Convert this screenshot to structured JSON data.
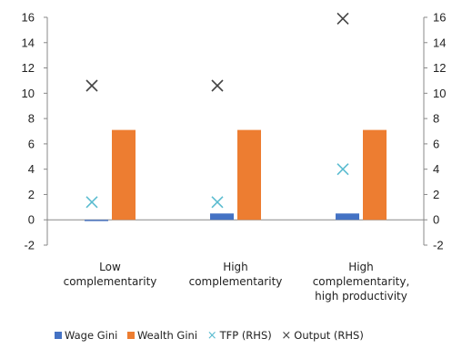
{
  "chart_data": {
    "type": "bar",
    "categories": [
      [
        "Low",
        "complementarity"
      ],
      [
        "High",
        "complementarity"
      ],
      [
        "High",
        "complementarity,",
        "high productivity"
      ]
    ],
    "series": [
      {
        "name": "Wage Gini",
        "kind": "bar",
        "axis": "left",
        "values": [
          -0.1,
          0.5,
          0.5
        ],
        "color": "#4472c4"
      },
      {
        "name": "Wealth Gini",
        "kind": "bar",
        "axis": "left",
        "values": [
          7.1,
          7.1,
          7.1
        ],
        "color": "#ed7d31"
      },
      {
        "name": "TFP (RHS)",
        "kind": "marker",
        "marker": "x",
        "axis": "right",
        "values": [
          1.4,
          1.4,
          4.0
        ],
        "color": "#5bbcd0"
      },
      {
        "name": "Output (RHS)",
        "kind": "marker",
        "marker": "x",
        "axis": "right",
        "values": [
          10.6,
          10.6,
          15.9
        ],
        "color": "#444444"
      }
    ],
    "y_left": {
      "ylim": [
        -2,
        16
      ],
      "ticks": [
        "-2",
        "0",
        "2",
        "4",
        "6",
        "8",
        "10",
        "12",
        "14",
        "16"
      ]
    },
    "y_right": {
      "ylim": [
        -2,
        16
      ],
      "ticks": [
        "-2",
        "0",
        "2",
        "4",
        "6",
        "8",
        "10",
        "12",
        "14",
        "16"
      ]
    },
    "grid": false,
    "legend_position": "bottom",
    "title": "",
    "xlabel": "",
    "ylabel": ""
  }
}
